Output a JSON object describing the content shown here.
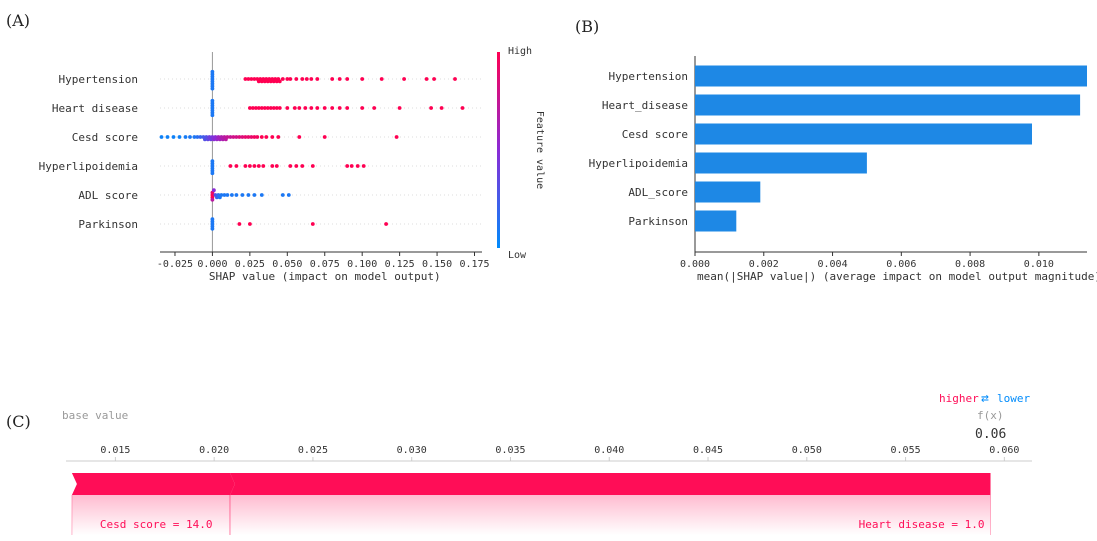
{
  "labels": {
    "a": "(A)",
    "b": "(B)",
    "c": "(C)"
  },
  "colors": {
    "high": "#ff0052",
    "low": "#008bfb",
    "bar": "#1e88e5",
    "force": "#ff0d57"
  },
  "chart_data": [
    {
      "type": "scatter",
      "panel": "A",
      "features": [
        "Hypertension",
        "Heart disease",
        "Cesd score",
        "Hyperlipoidemia",
        "ADL score",
        "Parkinson"
      ],
      "xticks": [
        "-0.025",
        "0.000",
        "0.025",
        "0.050",
        "0.075",
        "0.100",
        "0.125",
        "0.150",
        "0.175"
      ],
      "xlim": [
        -0.035,
        0.18
      ],
      "xlabel": "SHAP value (impact on model output)",
      "colorbar": {
        "label": "Feature value",
        "high": "High",
        "low": "Low"
      },
      "points": [
        {
          "feature": "Hypertension",
          "x": [
            0.0,
            0.0,
            0.0,
            0.0,
            0.0,
            0.0,
            0.0,
            0.0,
            0.022,
            0.024,
            0.026,
            0.028,
            0.03,
            0.031,
            0.032,
            0.033,
            0.034,
            0.035,
            0.036,
            0.037,
            0.038,
            0.039,
            0.04,
            0.041,
            0.042,
            0.043,
            0.044,
            0.045,
            0.047,
            0.05,
            0.052,
            0.056,
            0.06,
            0.063,
            0.066,
            0.07,
            0.08,
            0.085,
            0.09,
            0.1,
            0.113,
            0.128,
            0.143,
            0.148,
            0.162
          ],
          "c": [
            0.1,
            0.1,
            0.1,
            0.1,
            0.1,
            0.1,
            0.1,
            0.1,
            1,
            1,
            1,
            1,
            1,
            1,
            1,
            1,
            1,
            1,
            1,
            1,
            1,
            1,
            1,
            1,
            1,
            1,
            1,
            1,
            1,
            1,
            1,
            1,
            1,
            1,
            1,
            1,
            1,
            1,
            1,
            1,
            1,
            1,
            1,
            1,
            1
          ]
        },
        {
          "feature": "Heart disease",
          "x": [
            0.0,
            0.0,
            0.0,
            0.0,
            0.0,
            0.0,
            0.0,
            0.025,
            0.027,
            0.029,
            0.031,
            0.033,
            0.035,
            0.037,
            0.039,
            0.041,
            0.043,
            0.045,
            0.05,
            0.055,
            0.058,
            0.062,
            0.066,
            0.07,
            0.075,
            0.08,
            0.085,
            0.09,
            0.1,
            0.108,
            0.125,
            0.146,
            0.153,
            0.167
          ],
          "c": [
            0.1,
            0.1,
            0.1,
            0.1,
            0.1,
            0.1,
            0.1,
            1,
            1,
            1,
            1,
            1,
            1,
            1,
            1,
            1,
            1,
            1,
            1,
            1,
            1,
            1,
            1,
            1,
            1,
            1,
            1,
            1,
            1,
            1,
            1,
            1,
            1,
            1
          ]
        },
        {
          "feature": "Cesd score",
          "x": [
            -0.034,
            -0.03,
            -0.026,
            -0.022,
            -0.018,
            -0.015,
            -0.012,
            -0.01,
            -0.008,
            -0.006,
            -0.005,
            -0.004,
            -0.003,
            -0.002,
            -0.001,
            0.0,
            0.001,
            0.002,
            0.003,
            0.004,
            0.005,
            0.006,
            0.007,
            0.008,
            0.009,
            0.01,
            0.012,
            0.014,
            0.016,
            0.018,
            0.02,
            0.022,
            0.024,
            0.026,
            0.028,
            0.03,
            0.033,
            0.036,
            0.04,
            0.044,
            0.058,
            0.075,
            0.123
          ],
          "c": [
            0.05,
            0.05,
            0.05,
            0.05,
            0.08,
            0.1,
            0.1,
            0.15,
            0.2,
            0.25,
            0.3,
            0.3,
            0.35,
            0.4,
            0.4,
            0.45,
            0.5,
            0.5,
            0.55,
            0.6,
            0.6,
            0.65,
            0.65,
            0.7,
            0.7,
            0.75,
            0.75,
            0.8,
            0.8,
            0.85,
            0.85,
            0.9,
            0.9,
            0.9,
            0.95,
            0.95,
            1,
            1,
            1,
            1,
            1,
            1,
            1
          ]
        },
        {
          "feature": "Hyperlipoidemia",
          "x": [
            0.0,
            0.0,
            0.0,
            0.0,
            0.0,
            0.0,
            0.012,
            0.016,
            0.022,
            0.025,
            0.028,
            0.031,
            0.034,
            0.04,
            0.043,
            0.052,
            0.056,
            0.06,
            0.067,
            0.09,
            0.093,
            0.097,
            0.101
          ],
          "c": [
            0.1,
            0.1,
            0.1,
            0.1,
            0.1,
            0.1,
            1,
            1,
            1,
            1,
            1,
            1,
            1,
            1,
            1,
            1,
            1,
            1,
            1,
            1,
            1,
            1,
            1
          ]
        },
        {
          "feature": "ADL score",
          "x": [
            0.0,
            0.0,
            0.0,
            0.0,
            0.001,
            0.002,
            0.003,
            0.004,
            0.005,
            0.006,
            0.008,
            0.01,
            0.013,
            0.016,
            0.02,
            0.024,
            0.028,
            0.033,
            0.047,
            0.051
          ],
          "c": [
            1,
            1,
            0.9,
            0.7,
            0.5,
            0.3,
            0.2,
            0.15,
            0.1,
            0.1,
            0.1,
            0.1,
            0.1,
            0.1,
            0.1,
            0.1,
            0.1,
            0.1,
            0.1,
            0.1
          ]
        },
        {
          "feature": "Parkinson",
          "x": [
            0.0,
            0.0,
            0.0,
            0.0,
            0.0,
            0.018,
            0.025,
            0.067,
            0.116
          ],
          "c": [
            0.1,
            0.1,
            0.1,
            0.1,
            0.1,
            1,
            1,
            1,
            1
          ]
        }
      ]
    },
    {
      "type": "bar",
      "panel": "B",
      "orientation": "horizontal",
      "categories": [
        "Hypertension",
        "Heart_disease",
        "Cesd score",
        "Hyperlipoidemia",
        "ADL_score",
        "Parkinson"
      ],
      "values": [
        0.0114,
        0.0112,
        0.0098,
        0.005,
        0.0019,
        0.0012
      ],
      "xticks": [
        "0.000",
        "0.002",
        "0.004",
        "0.006",
        "0.008",
        "0.010"
      ],
      "xlim": [
        0.0,
        0.0114
      ],
      "xlabel": "mean(|SHAP value|) (average impact on model output magnitude)"
    },
    {
      "type": "force",
      "panel": "C",
      "legend_higher": "higher",
      "legend_arrow": "⇄",
      "legend_lower": "lower",
      "base_value_label": "base value",
      "output_label": "f(x)",
      "output_value": "0.06",
      "xticks": [
        "0.015",
        "0.020",
        "0.025",
        "0.030",
        "0.035",
        "0.040",
        "0.045",
        "0.050",
        "0.055",
        "0.060"
      ],
      "xlim": [
        0.0125,
        0.0614
      ],
      "segments": [
        {
          "label": "Cesd score = 14.0",
          "start": 0.0128,
          "end": 0.0208
        },
        {
          "label": "Heart disease = 1.0",
          "start": 0.0208,
          "end": 0.0593
        }
      ]
    }
  ]
}
